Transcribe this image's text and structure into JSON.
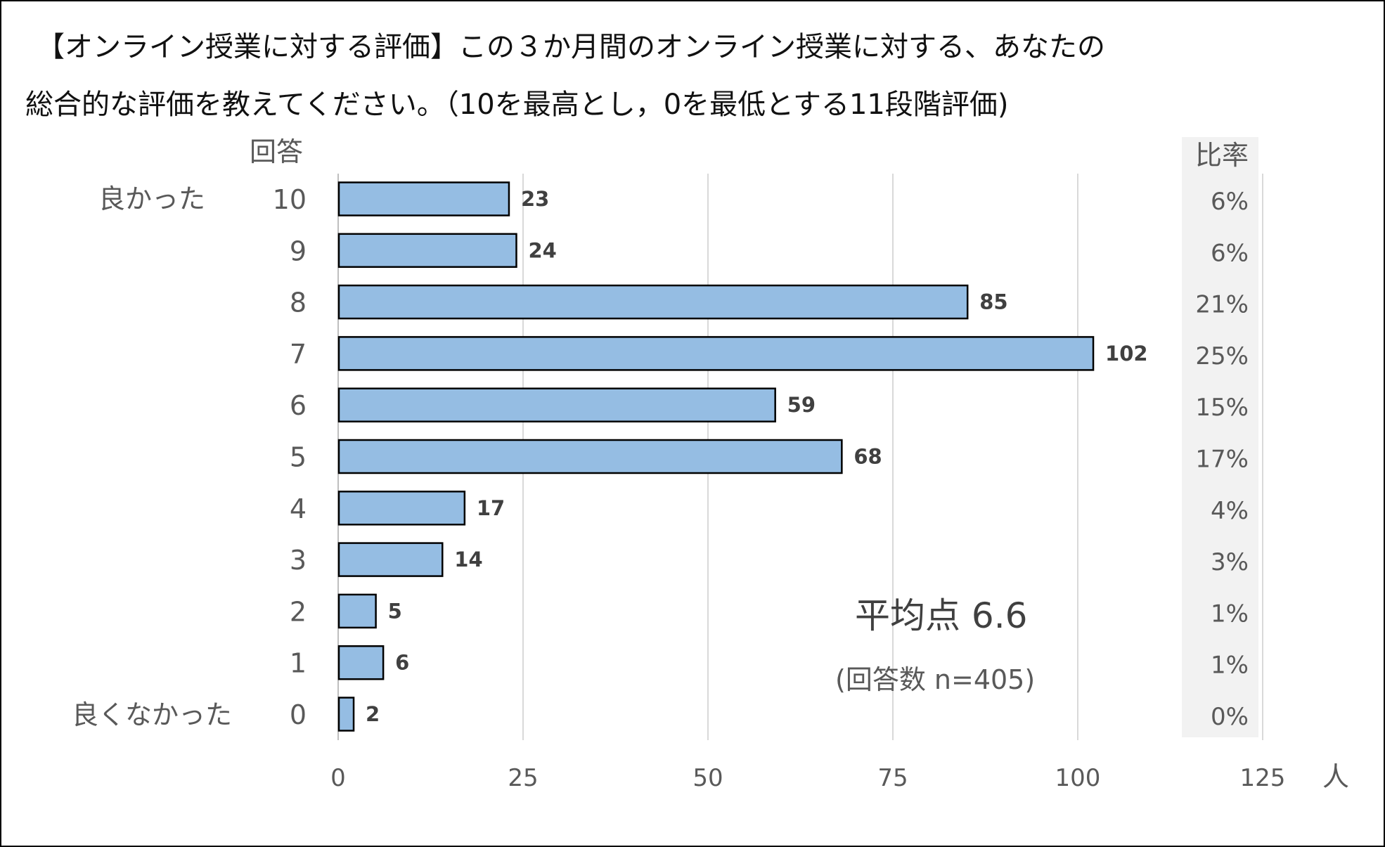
{
  "chart_data": {
    "type": "bar",
    "orientation": "horizontal",
    "title_line1": "【オンライン授業に対する評価】この３か月間のオンライン授業に対する、あなたの",
    "title_line2": "総合的な評価を教えてください。（10を最高とし，0を最低とする11段階評価)",
    "ylabel": "回答",
    "xlabel": "人",
    "ratio_header": "比率",
    "top_label": "良かった",
    "bottom_label": "良くなかった",
    "categories": [
      "10",
      "9",
      "8",
      "7",
      "6",
      "5",
      "4",
      "3",
      "2",
      "1",
      "0"
    ],
    "values": [
      23,
      24,
      85,
      102,
      59,
      68,
      17,
      14,
      5,
      6,
      2
    ],
    "ratios": [
      "6%",
      "6%",
      "21%",
      "25%",
      "15%",
      "17%",
      "4%",
      "3%",
      "1%",
      "1%",
      "0%"
    ],
    "xlim": [
      0,
      125
    ],
    "xticks": [
      "0",
      "25",
      "50",
      "75",
      "100",
      "125"
    ],
    "grid": true,
    "average_text": "平均点 6.6",
    "n_text": "(回答数 n=405)",
    "colors": {
      "bar": "#95bde3",
      "bar_edge": "#000000",
      "ratio_bg": "#f2f2f2",
      "grid": "#d9d9d9"
    }
  }
}
